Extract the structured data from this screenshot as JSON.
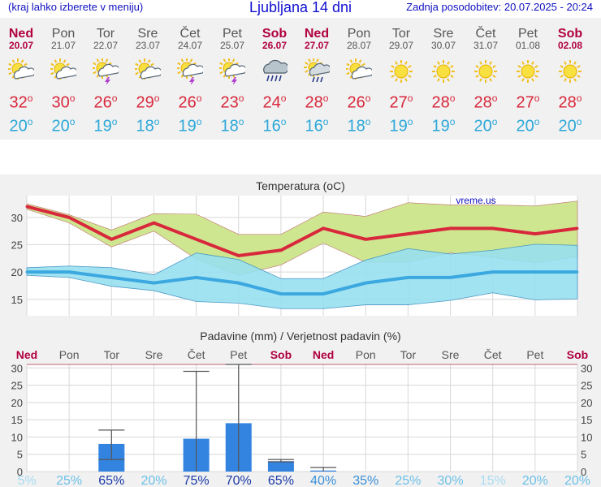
{
  "header": {
    "left_note": "(kraj lahko izberete v meniju)",
    "title": "Ljubljana 14 dni",
    "updated": "Zadnja posodobitev: 20.07.2025 - 20:24"
  },
  "days": [
    {
      "name": "Ned",
      "date": "20.07",
      "weekend": true,
      "icon": "sun-cloud-icon",
      "tmax": "32",
      "tmin": "20"
    },
    {
      "name": "Pon",
      "date": "21.07",
      "weekend": false,
      "icon": "sun-cloud-icon",
      "tmax": "30",
      "tmin": "20"
    },
    {
      "name": "Tor",
      "date": "22.07",
      "weekend": false,
      "icon": "sun-thunder-icon",
      "tmax": "26",
      "tmin": "19"
    },
    {
      "name": "Sre",
      "date": "23.07",
      "weekend": false,
      "icon": "sun-cloud-icon",
      "tmax": "29",
      "tmin": "18"
    },
    {
      "name": "Čet",
      "date": "24.07",
      "weekend": false,
      "icon": "sun-thunder-icon",
      "tmax": "26",
      "tmin": "19"
    },
    {
      "name": "Pet",
      "date": "25.07",
      "weekend": false,
      "icon": "sun-thunder-icon",
      "tmax": "23",
      "tmin": "18"
    },
    {
      "name": "Sob",
      "date": "26.07",
      "weekend": true,
      "icon": "cloud-rain-icon",
      "tmax": "24",
      "tmin": "16"
    },
    {
      "name": "Ned",
      "date": "27.07",
      "weekend": true,
      "icon": "sun-rain-icon",
      "tmax": "28",
      "tmin": "16"
    },
    {
      "name": "Pon",
      "date": "28.07",
      "weekend": false,
      "icon": "sun-cloud-icon",
      "tmax": "26",
      "tmin": "18"
    },
    {
      "name": "Tor",
      "date": "29.07",
      "weekend": false,
      "icon": "sun-icon",
      "tmax": "27",
      "tmin": "19"
    },
    {
      "name": "Sre",
      "date": "30.07",
      "weekend": false,
      "icon": "sun-icon",
      "tmax": "28",
      "tmin": "19"
    },
    {
      "name": "Čet",
      "date": "31.07",
      "weekend": false,
      "icon": "sun-icon",
      "tmax": "28",
      "tmin": "20"
    },
    {
      "name": "Pet",
      "date": "01.08",
      "weekend": false,
      "icon": "sun-icon",
      "tmax": "27",
      "tmin": "20"
    },
    {
      "name": "Sob",
      "date": "02.08",
      "weekend": true,
      "icon": "sun-icon",
      "tmax": "28",
      "tmin": "20"
    }
  ],
  "deg_symbol": "o",
  "colors": {
    "max_line": "#d8283c",
    "min_line": "#3ca8e0",
    "max_band": "#cfe690",
    "min_band": "#98e0f0",
    "overlap_band": "#8fd080",
    "bar": "#3284e0",
    "weekend": "#b00040"
  },
  "chart_data": [
    {
      "type": "line",
      "title": "Temperatura (oC)",
      "watermark": "vreme.us",
      "categories": [
        "20.07",
        "21.07",
        "22.07",
        "23.07",
        "24.07",
        "25.07",
        "26.07",
        "27.07",
        "28.07",
        "29.07",
        "30.07",
        "31.07",
        "01.08",
        "02.08"
      ],
      "ylim": [
        12,
        34
      ],
      "yticks": [
        15,
        20,
        25,
        30
      ],
      "grid": true,
      "series": [
        {
          "values": [
            32,
            30,
            26,
            29,
            26,
            23,
            24,
            28,
            26,
            27,
            28,
            28,
            27,
            28
          ]
        },
        {
          "values": [
            20,
            20,
            19,
            18,
            19,
            18,
            16,
            16,
            18,
            19,
            19,
            20,
            20,
            20
          ]
        }
      ],
      "max_range": {
        "high": [
          32.5,
          30.5,
          27.7,
          30.7,
          30.6,
          26.9,
          26.9,
          31,
          30.2,
          32.7,
          32.3,
          32.3,
          32.1,
          33
        ],
        "low": [
          31.5,
          29,
          24.6,
          27.5,
          22.4,
          19.4,
          21.3,
          25.3,
          21.8,
          21.8,
          23.5,
          22.7,
          21.7,
          22.8
        ]
      },
      "min_range": {
        "high": [
          20.8,
          21.1,
          20.8,
          19.5,
          23.5,
          22.3,
          18.8,
          18.8,
          22.2,
          24.3,
          23.3,
          24,
          25.1,
          24.9
        ],
        "low": [
          19.4,
          19,
          17.4,
          16.6,
          14.6,
          14.3,
          13.3,
          13.3,
          14,
          14,
          14.8,
          16.2,
          14.9,
          15.1
        ]
      }
    },
    {
      "type": "bar",
      "title": "Padavine (mm) / Verjetnost padavin (%)",
      "categories": [
        "Ned",
        "Pon",
        "Tor",
        "Sre",
        "Čet",
        "Pet",
        "Sob",
        "Ned",
        "Pon",
        "Tor",
        "Sre",
        "Čet",
        "Pet",
        "Sob"
      ],
      "weekend": [
        true,
        false,
        false,
        false,
        false,
        false,
        true,
        true,
        false,
        false,
        false,
        false,
        false,
        true
      ],
      "values": [
        0,
        0,
        8,
        0,
        9.5,
        14,
        3,
        0.3,
        0,
        0,
        0,
        0,
        0,
        0
      ],
      "err_low": [
        0,
        0,
        3.5,
        0,
        0,
        0,
        2.8,
        0,
        0,
        0,
        0,
        0,
        0,
        0
      ],
      "err_high": [
        0,
        0,
        12,
        0,
        29,
        31,
        3.5,
        1.2,
        0,
        0,
        0,
        0,
        0,
        0
      ],
      "probabilities": [
        "5%",
        "25%",
        "65%",
        "20%",
        "75%",
        "70%",
        "65%",
        "40%",
        "35%",
        "25%",
        "30%",
        "15%",
        "20%",
        "20%"
      ],
      "probability_values": [
        5,
        25,
        65,
        20,
        75,
        70,
        65,
        40,
        35,
        25,
        30,
        15,
        20,
        20
      ],
      "ylim": [
        0,
        31
      ],
      "yticks": [
        0,
        5,
        10,
        15,
        20,
        25,
        30
      ],
      "grid": true
    }
  ]
}
